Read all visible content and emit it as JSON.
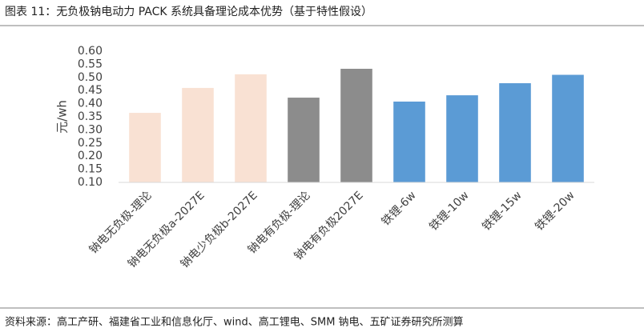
{
  "chart_data": {
    "type": "bar",
    "title": "图表 11：无负极钠电动力 PACK 系统具备理论成本优势（基于特性假设）",
    "y_label": "元/wh",
    "categories": [
      "钠电无负极-理论",
      "钠电无负极a-2027E",
      "钠电少负极b-2027E",
      "钠电有负极-理论",
      "钠电有负极2027E",
      "铁锂-6w",
      "铁锂-10w",
      "铁锂-15w",
      "铁锂-20w"
    ],
    "values": [
      0.365,
      0.46,
      0.512,
      0.423,
      0.533,
      0.408,
      0.432,
      0.478,
      0.51
    ],
    "colors": [
      "#f9e1d3",
      "#f9e1d3",
      "#f9e1d3",
      "#8c8c8c",
      "#8c8c8c",
      "#5b9bd5",
      "#5b9bd5",
      "#5b9bd5",
      "#5b9bd5"
    ],
    "ylim": [
      0.1,
      0.6
    ],
    "yticks": [
      {
        "value": 0.1,
        "label": "0.10"
      },
      {
        "value": 0.15,
        "label": "0.15"
      },
      {
        "value": 0.2,
        "label": "0.20"
      },
      {
        "value": 0.25,
        "label": "0.25"
      },
      {
        "value": 0.3,
        "label": "0.30"
      },
      {
        "value": 0.35,
        "label": "0.35"
      },
      {
        "value": 0.4,
        "label": "0.40"
      },
      {
        "value": 0.45,
        "label": "0.45"
      },
      {
        "value": 0.5,
        "label": "0.50"
      },
      {
        "value": 0.55,
        "label": "0.55"
      },
      {
        "value": 0.6,
        "label": "0.60"
      }
    ],
    "grid": false,
    "source": "资料来源：高工产研、福建省工业和信息化厅、wind、高工锂电、SMM 钠电、五矿证券研究所测算"
  }
}
